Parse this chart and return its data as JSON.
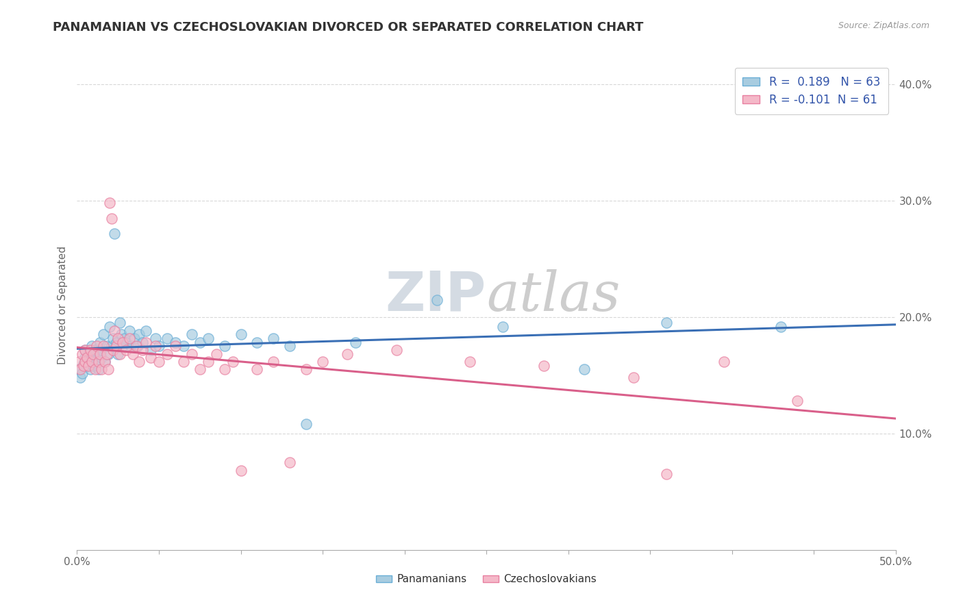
{
  "title": "PANAMANIAN VS CZECHOSLOVAKIAN DIVORCED OR SEPARATED CORRELATION CHART",
  "source": "Source: ZipAtlas.com",
  "ylabel": "Divorced or Separated",
  "xlim": [
    0.0,
    0.5
  ],
  "ylim": [
    0.0,
    0.42
  ],
  "ytick_labels": [
    "10.0%",
    "20.0%",
    "30.0%",
    "40.0%"
  ],
  "ytick_values": [
    0.1,
    0.2,
    0.3,
    0.4
  ],
  "legend_entries": [
    "Panamanians",
    "Czechoslovakians"
  ],
  "r_pan": 0.189,
  "n_pan": 63,
  "r_czk": -0.101,
  "n_czk": 61,
  "color_pan": "#a8cce0",
  "color_czk": "#f4b8c8",
  "edge_pan": "#6aaed6",
  "edge_czk": "#e87fa0",
  "line_color_pan": "#3a6fb5",
  "line_color_czk": "#d95f8a",
  "background": "#ffffff",
  "watermark_zip": "ZIP",
  "watermark_atlas": "atlas",
  "pan_scatter": [
    [
      0.001,
      0.155
    ],
    [
      0.002,
      0.148
    ],
    [
      0.003,
      0.152
    ],
    [
      0.004,
      0.16
    ],
    [
      0.005,
      0.165
    ],
    [
      0.005,
      0.172
    ],
    [
      0.006,
      0.158
    ],
    [
      0.007,
      0.162
    ],
    [
      0.007,
      0.168
    ],
    [
      0.008,
      0.155
    ],
    [
      0.009,
      0.175
    ],
    [
      0.01,
      0.165
    ],
    [
      0.01,
      0.158
    ],
    [
      0.011,
      0.172
    ],
    [
      0.012,
      0.162
    ],
    [
      0.013,
      0.168
    ],
    [
      0.013,
      0.155
    ],
    [
      0.014,
      0.178
    ],
    [
      0.015,
      0.165
    ],
    [
      0.015,
      0.172
    ],
    [
      0.016,
      0.185
    ],
    [
      0.017,
      0.162
    ],
    [
      0.018,
      0.175
    ],
    [
      0.019,
      0.168
    ],
    [
      0.02,
      0.192
    ],
    [
      0.021,
      0.175
    ],
    [
      0.022,
      0.182
    ],
    [
      0.023,
      0.272
    ],
    [
      0.024,
      0.178
    ],
    [
      0.025,
      0.168
    ],
    [
      0.026,
      0.195
    ],
    [
      0.027,
      0.185
    ],
    [
      0.028,
      0.175
    ],
    [
      0.029,
      0.182
    ],
    [
      0.03,
      0.178
    ],
    [
      0.032,
      0.188
    ],
    [
      0.033,
      0.175
    ],
    [
      0.035,
      0.182
    ],
    [
      0.037,
      0.175
    ],
    [
      0.038,
      0.185
    ],
    [
      0.04,
      0.178
    ],
    [
      0.042,
      0.188
    ],
    [
      0.045,
      0.172
    ],
    [
      0.048,
      0.182
    ],
    [
      0.05,
      0.175
    ],
    [
      0.055,
      0.182
    ],
    [
      0.06,
      0.178
    ],
    [
      0.065,
      0.175
    ],
    [
      0.07,
      0.185
    ],
    [
      0.075,
      0.178
    ],
    [
      0.08,
      0.182
    ],
    [
      0.09,
      0.175
    ],
    [
      0.1,
      0.185
    ],
    [
      0.11,
      0.178
    ],
    [
      0.12,
      0.182
    ],
    [
      0.13,
      0.175
    ],
    [
      0.14,
      0.108
    ],
    [
      0.17,
      0.178
    ],
    [
      0.22,
      0.215
    ],
    [
      0.26,
      0.192
    ],
    [
      0.31,
      0.155
    ],
    [
      0.36,
      0.195
    ],
    [
      0.43,
      0.192
    ]
  ],
  "czk_scatter": [
    [
      0.001,
      0.162
    ],
    [
      0.002,
      0.155
    ],
    [
      0.003,
      0.168
    ],
    [
      0.004,
      0.158
    ],
    [
      0.005,
      0.172
    ],
    [
      0.005,
      0.162
    ],
    [
      0.006,
      0.165
    ],
    [
      0.007,
      0.158
    ],
    [
      0.008,
      0.172
    ],
    [
      0.009,
      0.162
    ],
    [
      0.01,
      0.168
    ],
    [
      0.011,
      0.155
    ],
    [
      0.012,
      0.175
    ],
    [
      0.013,
      0.162
    ],
    [
      0.014,
      0.168
    ],
    [
      0.015,
      0.155
    ],
    [
      0.016,
      0.175
    ],
    [
      0.017,
      0.162
    ],
    [
      0.018,
      0.168
    ],
    [
      0.019,
      0.155
    ],
    [
      0.02,
      0.298
    ],
    [
      0.021,
      0.285
    ],
    [
      0.022,
      0.172
    ],
    [
      0.023,
      0.188
    ],
    [
      0.024,
      0.175
    ],
    [
      0.025,
      0.182
    ],
    [
      0.026,
      0.168
    ],
    [
      0.028,
      0.178
    ],
    [
      0.03,
      0.172
    ],
    [
      0.032,
      0.182
    ],
    [
      0.034,
      0.168
    ],
    [
      0.036,
      0.175
    ],
    [
      0.038,
      0.162
    ],
    [
      0.04,
      0.172
    ],
    [
      0.042,
      0.178
    ],
    [
      0.045,
      0.165
    ],
    [
      0.048,
      0.175
    ],
    [
      0.05,
      0.162
    ],
    [
      0.055,
      0.168
    ],
    [
      0.06,
      0.175
    ],
    [
      0.065,
      0.162
    ],
    [
      0.07,
      0.168
    ],
    [
      0.075,
      0.155
    ],
    [
      0.08,
      0.162
    ],
    [
      0.085,
      0.168
    ],
    [
      0.09,
      0.155
    ],
    [
      0.095,
      0.162
    ],
    [
      0.1,
      0.068
    ],
    [
      0.11,
      0.155
    ],
    [
      0.12,
      0.162
    ],
    [
      0.13,
      0.075
    ],
    [
      0.14,
      0.155
    ],
    [
      0.15,
      0.162
    ],
    [
      0.165,
      0.168
    ],
    [
      0.195,
      0.172
    ],
    [
      0.24,
      0.162
    ],
    [
      0.285,
      0.158
    ],
    [
      0.34,
      0.148
    ],
    [
      0.36,
      0.065
    ],
    [
      0.395,
      0.162
    ],
    [
      0.44,
      0.128
    ]
  ]
}
